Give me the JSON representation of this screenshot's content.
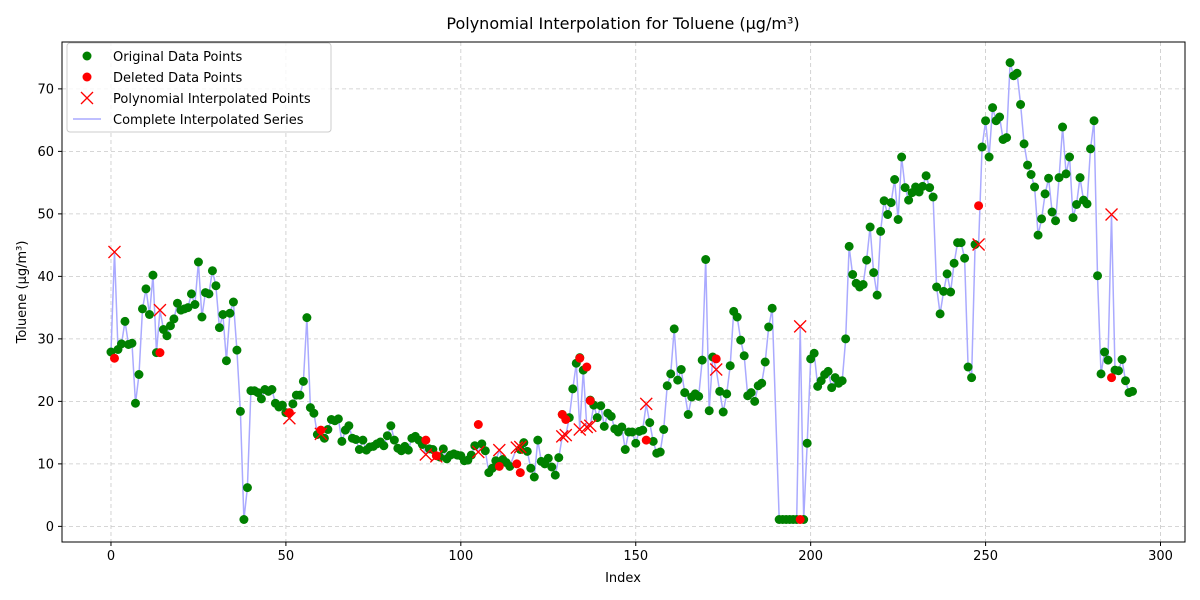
{
  "chart_data": {
    "type": "scatter",
    "title": "Polynomial Interpolation for Toluene (μg/m³)",
    "xlabel": "Index",
    "ylabel": "Toluene (μg/m³)",
    "xlim": [
      -14,
      307
    ],
    "ylim": [
      -2.5,
      77.5
    ],
    "xticks": [
      0,
      50,
      100,
      150,
      200,
      250,
      300
    ],
    "yticks": [
      0,
      10,
      20,
      30,
      40,
      50,
      60,
      70
    ],
    "grid": true,
    "legend_position": "top-left",
    "colors": {
      "original": "#008000",
      "deleted": "#ff0000",
      "interpolated": "#ff0000",
      "line": "#aaaaff"
    },
    "series": [
      {
        "name": "Original Data Points",
        "marker": "circle",
        "x": [
          0,
          2,
          3,
          4,
          5,
          6,
          7,
          8,
          9,
          10,
          11,
          12,
          13,
          15,
          16,
          17,
          18,
          19,
          20,
          21,
          22,
          23,
          24,
          25,
          26,
          27,
          28,
          29,
          30,
          31,
          32,
          33,
          34,
          35,
          36,
          37,
          38,
          39,
          40,
          41,
          42,
          43,
          44,
          45,
          46,
          47,
          48,
          49,
          50,
          52,
          53,
          54,
          55,
          56,
          57,
          58,
          59,
          61,
          62,
          63,
          64,
          65,
          66,
          67,
          68,
          69,
          70,
          71,
          72,
          73,
          74,
          75,
          76,
          77,
          78,
          79,
          80,
          81,
          82,
          83,
          84,
          85,
          86,
          87,
          88,
          89,
          91,
          92,
          94,
          95,
          96,
          97,
          98,
          99,
          100,
          101,
          102,
          103,
          104,
          106,
          107,
          108,
          109,
          110,
          112,
          113,
          114,
          117,
          118,
          119,
          120,
          121,
          122,
          123,
          124,
          125,
          126,
          127,
          128,
          129,
          131,
          132,
          133,
          134,
          135,
          137,
          138,
          139,
          140,
          141,
          142,
          143,
          144,
          145,
          146,
          147,
          148,
          149,
          150,
          151,
          152,
          154,
          155,
          156,
          157,
          158,
          159,
          160,
          161,
          162,
          163,
          164,
          165,
          166,
          167,
          168,
          169,
          170,
          171,
          172,
          174,
          175,
          176,
          177,
          178,
          179,
          180,
          181,
          182,
          183,
          184,
          185,
          186,
          187,
          188,
          189,
          191,
          192,
          193,
          194,
          195,
          196,
          198,
          199,
          200,
          201,
          202,
          203,
          204,
          205,
          206,
          207,
          208,
          209,
          210,
          211,
          212,
          213,
          214,
          215,
          216,
          217,
          218,
          219,
          220,
          221,
          222,
          223,
          224,
          225,
          226,
          227,
          228,
          229,
          230,
          231,
          232,
          233,
          234,
          235,
          236,
          237,
          238,
          239,
          240,
          241,
          242,
          243,
          244,
          245,
          246,
          247,
          249,
          250,
          251,
          252,
          253,
          254,
          255,
          256,
          257,
          258,
          259,
          260,
          261,
          262,
          263,
          264,
          265,
          266,
          267,
          268,
          269,
          270,
          271,
          272,
          273,
          274,
          275,
          276,
          277,
          278,
          279,
          280,
          281,
          282,
          283,
          284,
          285,
          287,
          288,
          289,
          290,
          291,
          292
        ],
        "y": [
          27.9,
          28.3,
          29.2,
          32.8,
          29.1,
          29.3,
          19.7,
          24.3,
          34.8,
          38.0,
          33.9,
          40.2,
          27.8,
          31.5,
          30.5,
          32.1,
          33.2,
          35.7,
          34.6,
          34.8,
          35.0,
          37.2,
          35.5,
          42.3,
          33.5,
          37.4,
          37.2,
          40.9,
          38.5,
          31.8,
          33.9,
          26.5,
          34.1,
          35.9,
          28.2,
          18.4,
          1.1,
          6.2,
          21.7,
          21.7,
          21.4,
          20.4,
          21.9,
          21.6,
          21.9,
          19.7,
          19.1,
          19.4,
          18.2,
          19.6,
          21.0,
          21.0,
          23.2,
          33.4,
          19.0,
          18.1,
          14.7,
          14.1,
          15.5,
          17.1,
          16.9,
          17.2,
          13.6,
          15.4,
          16.1,
          14.1,
          13.9,
          12.3,
          13.8,
          12.2,
          12.7,
          12.8,
          13.2,
          13.5,
          12.9,
          14.5,
          16.1,
          13.8,
          12.5,
          12.1,
          12.8,
          12.2,
          14.1,
          14.4,
          13.8,
          13.1,
          12.4,
          12.3,
          11.1,
          12.4,
          10.8,
          11.4,
          11.6,
          11.4,
          11.3,
          10.5,
          10.6,
          11.4,
          12.9,
          13.2,
          12.1,
          8.6,
          9.3,
          10.5,
          10.7,
          10.2,
          9.6,
          12.3,
          13.4,
          12.0,
          9.3,
          7.9,
          13.8,
          10.4,
          10.0,
          10.9,
          9.5,
          8.2,
          11.0,
          17.9,
          17.4,
          22.0,
          26.1,
          27.0,
          25.0,
          20.2,
          19.4,
          17.4,
          19.3,
          16.0,
          18.1,
          17.6,
          15.6,
          15.1,
          15.9,
          12.3,
          15.1,
          15.1,
          13.3,
          15.2,
          15.4,
          16.6,
          13.6,
          11.7,
          11.9,
          15.5,
          22.5,
          24.4,
          31.6,
          23.4,
          25.1,
          21.4,
          17.9,
          20.7,
          21.2,
          20.8,
          26.6,
          42.7,
          18.5,
          27.1,
          21.6,
          18.3,
          21.2,
          25.7,
          34.4,
          33.5,
          29.8,
          27.3,
          20.9,
          21.4,
          20.0,
          22.5,
          22.9,
          26.3,
          31.9,
          34.9,
          1.1,
          1.1,
          1.1,
          1.1,
          1.1,
          1.1,
          1.1,
          13.3,
          26.8,
          27.7,
          22.4,
          23.3,
          24.3,
          24.8,
          22.2,
          23.8,
          22.9,
          23.3,
          30.0,
          44.8,
          40.3,
          38.9,
          38.3,
          38.7,
          42.6,
          47.9,
          40.6,
          37.0,
          47.2,
          52.1,
          49.9,
          51.8,
          55.5,
          49.1,
          59.1,
          54.2,
          52.2,
          53.4,
          54.3,
          53.5,
          54.4,
          56.1,
          54.2,
          52.7,
          38.3,
          34.0,
          37.6,
          40.4,
          37.5,
          42.1,
          45.4,
          45.4,
          42.9,
          25.5,
          23.8,
          45.1,
          60.7,
          64.9,
          59.1,
          67.0,
          64.9,
          65.5,
          61.9,
          62.2,
          74.2,
          72.1,
          72.5,
          67.5,
          61.2,
          57.8,
          56.3,
          54.3,
          46.6,
          49.2,
          53.2,
          55.7,
          50.3,
          48.9,
          55.8,
          63.9,
          56.4,
          59.1,
          49.4,
          51.5,
          55.8,
          52.2,
          51.6,
          60.4,
          64.9,
          40.1,
          24.4,
          27.9,
          26.6,
          25.0,
          24.9,
          26.7,
          23.3,
          21.4,
          21.6
        ]
      },
      {
        "name": "Deleted Data Points",
        "marker": "circle",
        "x": [
          1,
          14,
          51,
          60,
          90,
          93,
          105,
          111,
          116,
          117,
          129,
          130,
          134,
          136,
          137,
          153,
          173,
          197,
          248,
          286
        ],
        "y": [
          26.9,
          27.8,
          18.2,
          15.4,
          13.8,
          11.3,
          16.3,
          9.6,
          10.0,
          8.6,
          17.9,
          17.1,
          26.9,
          25.5,
          20.1,
          13.8,
          26.8,
          1.1,
          51.3,
          23.8
        ]
      },
      {
        "name": "Polynomial Interpolated Points",
        "marker": "x",
        "x": [
          1,
          14,
          51,
          60,
          90,
          93,
          105,
          111,
          116,
          117,
          129,
          130,
          134,
          136,
          137,
          153,
          173,
          197,
          248,
          286
        ],
        "y": [
          43.9,
          34.6,
          17.3,
          14.8,
          11.5,
          11.2,
          11.9,
          12.2,
          12.6,
          12.7,
          14.4,
          14.6,
          15.5,
          15.9,
          16.1,
          19.6,
          25.1,
          32.0,
          45.1,
          49.9
        ]
      },
      {
        "name": "Complete Interpolated Series",
        "marker": "line"
      }
    ]
  }
}
